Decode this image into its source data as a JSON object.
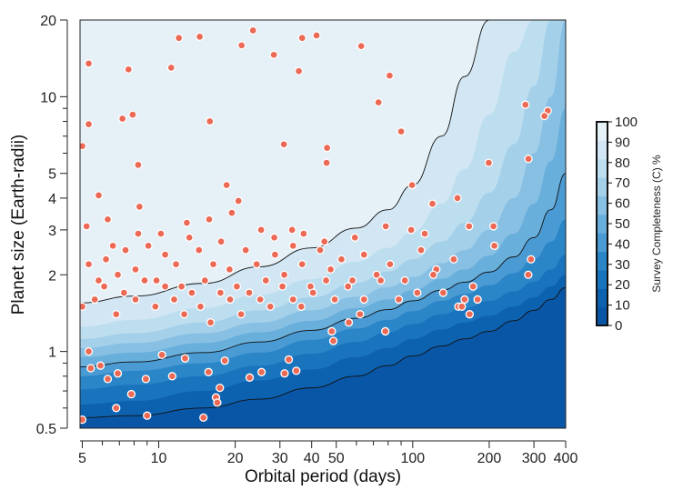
{
  "chart_data": {
    "type": "scatter",
    "xlabel": "Orbital period (days)",
    "ylabel": "Planet size (Earth-radii)",
    "xscale": "log",
    "yscale": "log",
    "xlim": [
      4.9,
      400
    ],
    "ylim": [
      0.5,
      20
    ],
    "xticks": [
      5,
      10,
      20,
      30,
      40,
      50,
      100,
      200,
      300,
      400
    ],
    "xtick_labels": [
      "5",
      "10",
      "20",
      "30",
      "40",
      "50",
      "100",
      "200",
      "300",
      "400"
    ],
    "xticks_minor": [
      6,
      7,
      8,
      9,
      60,
      70,
      80,
      90
    ],
    "yticks": [
      0.5,
      1,
      2,
      3,
      4,
      5,
      10,
      20
    ],
    "ytick_labels": [
      "0.5",
      "1",
      "2",
      "3",
      "4",
      "5",
      "10",
      "20"
    ],
    "yticks_minor": [
      0.6,
      0.7,
      0.8,
      0.9,
      6,
      7,
      8,
      9
    ],
    "points": [
      [
        5.0,
        6.4
      ],
      [
        5.3,
        13.5
      ],
      [
        5.3,
        7.8
      ],
      [
        5.8,
        4.1
      ],
      [
        6.3,
        3.3
      ],
      [
        7.6,
        12.8
      ],
      [
        7.9,
        8.5
      ],
      [
        8.3,
        5.4
      ],
      [
        8.4,
        3.7
      ],
      [
        7.2,
        8.2
      ],
      [
        11.2,
        13.0
      ],
      [
        12.0,
        17.0
      ],
      [
        14.5,
        17.2
      ],
      [
        15.9,
        8.0
      ],
      [
        18.5,
        4.5
      ],
      [
        20.6,
        3.9
      ],
      [
        21.2,
        15.9
      ],
      [
        23.5,
        18.2
      ],
      [
        28.4,
        14.6
      ],
      [
        31.1,
        6.5
      ],
      [
        35.6,
        12.6
      ],
      [
        36.7,
        17.0
      ],
      [
        41.8,
        17.4
      ],
      [
        46.0,
        6.3
      ],
      [
        45.8,
        5.5
      ],
      [
        62.7,
        15.8
      ],
      [
        73.3,
        9.5
      ],
      [
        81.1,
        12.1
      ],
      [
        90.0,
        7.3
      ],
      [
        99.4,
        4.5
      ],
      [
        119.6,
        3.8
      ],
      [
        150.0,
        4.0
      ],
      [
        199.1,
        5.5
      ],
      [
        277.7,
        9.3
      ],
      [
        285.4,
        5.7
      ],
      [
        340.0,
        8.8
      ],
      [
        330.0,
        8.4
      ],
      [
        5.0,
        1.5
      ],
      [
        5.3,
        2.2
      ],
      [
        5.8,
        1.9
      ],
      [
        6.2,
        2.3
      ],
      [
        6.9,
        2.0
      ],
      [
        7.4,
        2.5
      ],
      [
        8.1,
        2.1
      ],
      [
        9.1,
        2.6
      ],
      [
        9.8,
        1.9
      ],
      [
        10.6,
        2.4
      ],
      [
        11.7,
        2.2
      ],
      [
        12.3,
        1.8
      ],
      [
        13.2,
        2.8
      ],
      [
        14.4,
        2.5
      ],
      [
        15.2,
        1.9
      ],
      [
        16.4,
        2.2
      ],
      [
        17.6,
        2.7
      ],
      [
        19.0,
        2.1
      ],
      [
        20.3,
        1.8
      ],
      [
        22.0,
        2.5
      ],
      [
        24.3,
        2.2
      ],
      [
        26.4,
        1.9
      ],
      [
        28.7,
        2.4
      ],
      [
        31.2,
        2.0
      ],
      [
        33.8,
        2.6
      ],
      [
        36.7,
        2.2
      ],
      [
        39.6,
        1.8
      ],
      [
        43.2,
        2.5
      ],
      [
        47.5,
        2.1
      ],
      [
        52.4,
        2.3
      ],
      [
        57.9,
        1.9
      ],
      [
        64.3,
        2.4
      ],
      [
        72.1,
        2.0
      ],
      [
        81.4,
        2.2
      ],
      [
        93.1,
        1.9
      ],
      [
        107.8,
        2.5
      ],
      [
        123.8,
        2.1
      ],
      [
        145.0,
        2.3
      ],
      [
        172.8,
        1.8
      ],
      [
        209.6,
        2.6
      ],
      [
        5.6,
        1.6
      ],
      [
        6.1,
        1.8
      ],
      [
        6.8,
        1.4
      ],
      [
        7.3,
        1.7
      ],
      [
        8.1,
        1.6
      ],
      [
        8.8,
        1.9
      ],
      [
        9.7,
        1.5
      ],
      [
        10.6,
        1.8
      ],
      [
        11.5,
        1.6
      ],
      [
        12.6,
        1.4
      ],
      [
        13.5,
        1.7
      ],
      [
        14.6,
        1.5
      ],
      [
        16.0,
        1.3
      ],
      [
        17.5,
        1.7
      ],
      [
        19.1,
        1.6
      ],
      [
        21.1,
        1.4
      ],
      [
        22.7,
        1.7
      ],
      [
        25.1,
        1.6
      ],
      [
        27.5,
        1.5
      ],
      [
        30.7,
        1.8
      ],
      [
        33.8,
        1.6
      ],
      [
        36.4,
        1.5
      ],
      [
        40.5,
        1.7
      ],
      [
        45.6,
        1.9
      ],
      [
        49.3,
        1.6
      ],
      [
        55.6,
        1.8
      ],
      [
        64.3,
        1.6
      ],
      [
        74.8,
        1.9
      ],
      [
        88.1,
        1.6
      ],
      [
        104.2,
        1.7
      ],
      [
        5.3,
        1.0
      ],
      [
        5.4,
        0.86
      ],
      [
        5.9,
        0.88
      ],
      [
        6.3,
        0.78
      ],
      [
        6.9,
        0.82
      ],
      [
        7.8,
        0.68
      ],
      [
        8.9,
        0.78
      ],
      [
        10.3,
        0.97
      ],
      [
        11.3,
        0.8
      ],
      [
        12.7,
        0.94
      ],
      [
        15.7,
        0.83
      ],
      [
        16.8,
        0.66
      ],
      [
        17.4,
        0.72
      ],
      [
        18.2,
        0.92
      ],
      [
        22.8,
        0.79
      ],
      [
        25.4,
        0.83
      ],
      [
        31.3,
        0.82
      ],
      [
        32.5,
        0.93
      ],
      [
        34.8,
        0.84
      ],
      [
        48.7,
        1.1
      ],
      [
        5.0,
        0.54
      ],
      [
        6.8,
        0.6
      ],
      [
        9.0,
        0.56
      ],
      [
        15.0,
        0.55
      ],
      [
        17.0,
        0.63
      ],
      [
        5.2,
        3.1
      ],
      [
        6.6,
        2.6
      ],
      [
        8.3,
        2.9
      ],
      [
        10.2,
        2.9
      ],
      [
        12.9,
        3.2
      ],
      [
        15.8,
        3.3
      ],
      [
        19.4,
        3.5
      ],
      [
        25.3,
        3.0
      ],
      [
        28.5,
        2.8
      ],
      [
        33.5,
        3.0
      ],
      [
        37.2,
        2.9
      ],
      [
        44.9,
        2.7
      ],
      [
        59.2,
        2.8
      ],
      [
        78.3,
        3.1
      ],
      [
        98.6,
        3.0
      ],
      [
        111.5,
        2.9
      ],
      [
        166.6,
        3.1
      ],
      [
        207.9,
        3.1
      ],
      [
        285.0,
        2.0
      ],
      [
        292.0,
        2.3
      ],
      [
        120.5,
        2.0
      ],
      [
        131.8,
        1.7
      ],
      [
        151.2,
        1.5
      ],
      [
        156.0,
        1.5
      ],
      [
        167.4,
        1.4
      ],
      [
        160.0,
        1.6
      ],
      [
        180.0,
        1.6
      ],
      [
        78.0,
        1.2
      ],
      [
        62.0,
        1.4
      ],
      [
        56.0,
        1.3
      ],
      [
        48.0,
        1.2
      ]
    ]
  },
  "colorbar": {
    "title": "Survey Completeness (C) %",
    "ticks": [
      0,
      10,
      20,
      30,
      40,
      50,
      60,
      70,
      80,
      90,
      100
    ],
    "colors": [
      "#0a56a6",
      "#0d62b0",
      "#1a74bd",
      "#2b86c8",
      "#4a9bd3",
      "#69afdc",
      "#88c0e4",
      "#a5d0ea",
      "#bddeef",
      "#d2e7f3",
      "#e5f0f7"
    ]
  },
  "completeness_contour": {
    "x": [
      4.9,
      8,
      15,
      25,
      40,
      60,
      80,
      100,
      130,
      160,
      200,
      250,
      300,
      350,
      400
    ],
    "ticks_per_level": [
      [
        0.55,
        0.56,
        0.6,
        0.65,
        0.72,
        0.8,
        0.88,
        0.96,
        1.05,
        1.12,
        1.2,
        1.32,
        1.45,
        1.6,
        1.78
      ],
      [
        0.62,
        0.64,
        0.7,
        0.77,
        0.85,
        0.95,
        1.03,
        1.12,
        1.22,
        1.3,
        1.38,
        1.5,
        1.63,
        1.8,
        2.0
      ],
      [
        0.71,
        0.74,
        0.8,
        0.88,
        0.98,
        1.09,
        1.19,
        1.28,
        1.4,
        1.48,
        1.58,
        1.72,
        1.88,
        2.1,
        2.4
      ],
      [
        0.8,
        0.84,
        0.9,
        0.99,
        1.11,
        1.23,
        1.33,
        1.44,
        1.58,
        1.68,
        1.82,
        2.03,
        2.3,
        2.7,
        3.3
      ],
      [
        0.87,
        0.91,
        0.99,
        1.09,
        1.21,
        1.35,
        1.46,
        1.58,
        1.74,
        1.87,
        2.05,
        2.35,
        2.8,
        3.6,
        5.0
      ],
      [
        0.95,
        0.99,
        1.08,
        1.19,
        1.32,
        1.48,
        1.6,
        1.74,
        1.93,
        2.1,
        2.38,
        2.9,
        3.8,
        5.6,
        9.0
      ],
      [
        1.03,
        1.08,
        1.18,
        1.3,
        1.45,
        1.64,
        1.79,
        1.96,
        2.22,
        2.5,
        3.0,
        4.0,
        6.0,
        10.0,
        20.0
      ],
      [
        1.12,
        1.18,
        1.3,
        1.45,
        1.63,
        1.86,
        2.06,
        2.3,
        2.7,
        3.2,
        4.2,
        6.5,
        11.0,
        20.0,
        20.0
      ],
      [
        1.25,
        1.33,
        1.48,
        1.67,
        1.92,
        2.25,
        2.55,
        2.95,
        3.8,
        5.2,
        8.5,
        15.0,
        20.0,
        20.0,
        20.0
      ],
      [
        1.55,
        1.65,
        1.85,
        2.15,
        2.55,
        3.05,
        3.6,
        4.5,
        7.0,
        12.0,
        20.0,
        20.0,
        20.0,
        20.0,
        20.0
      ]
    ]
  }
}
